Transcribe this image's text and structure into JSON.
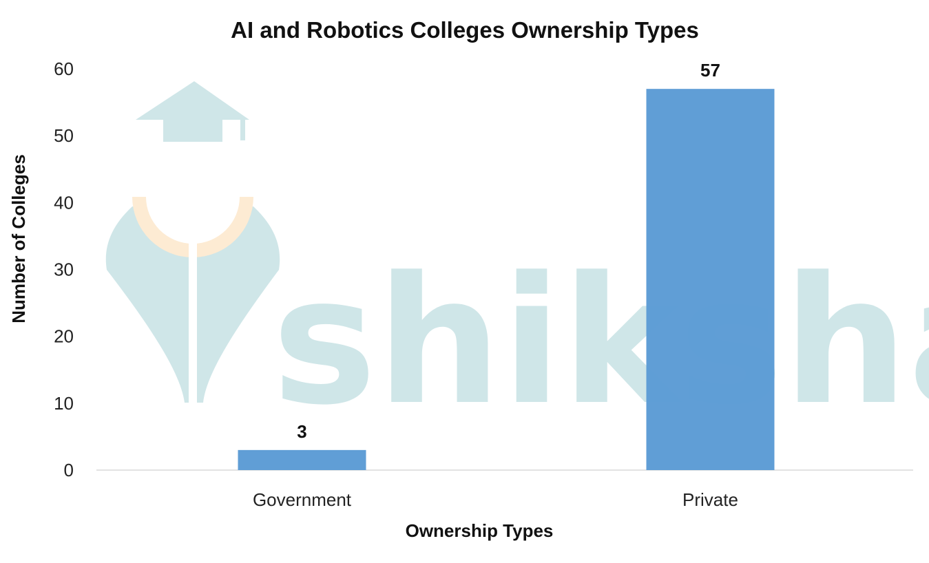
{
  "chart_data": {
    "type": "bar",
    "title": "AI and Robotics Colleges Ownership Types",
    "xlabel": "Ownership Types",
    "ylabel": "Number of Colleges",
    "categories": [
      "Government",
      "Private"
    ],
    "values": [
      3,
      57
    ],
    "data_labels": [
      "3",
      "57"
    ],
    "ylim": [
      0,
      60
    ],
    "yticks": [
      "0",
      "10",
      "20",
      "30",
      "40",
      "50",
      "60"
    ],
    "grid": false,
    "legend": "none",
    "bar_color": "#5b9bd5"
  },
  "watermark": {
    "text": "shiksha",
    "icon": "graduate-logo-icon",
    "color": "#cfe6e8",
    "accent_color": "#fdebd3"
  }
}
